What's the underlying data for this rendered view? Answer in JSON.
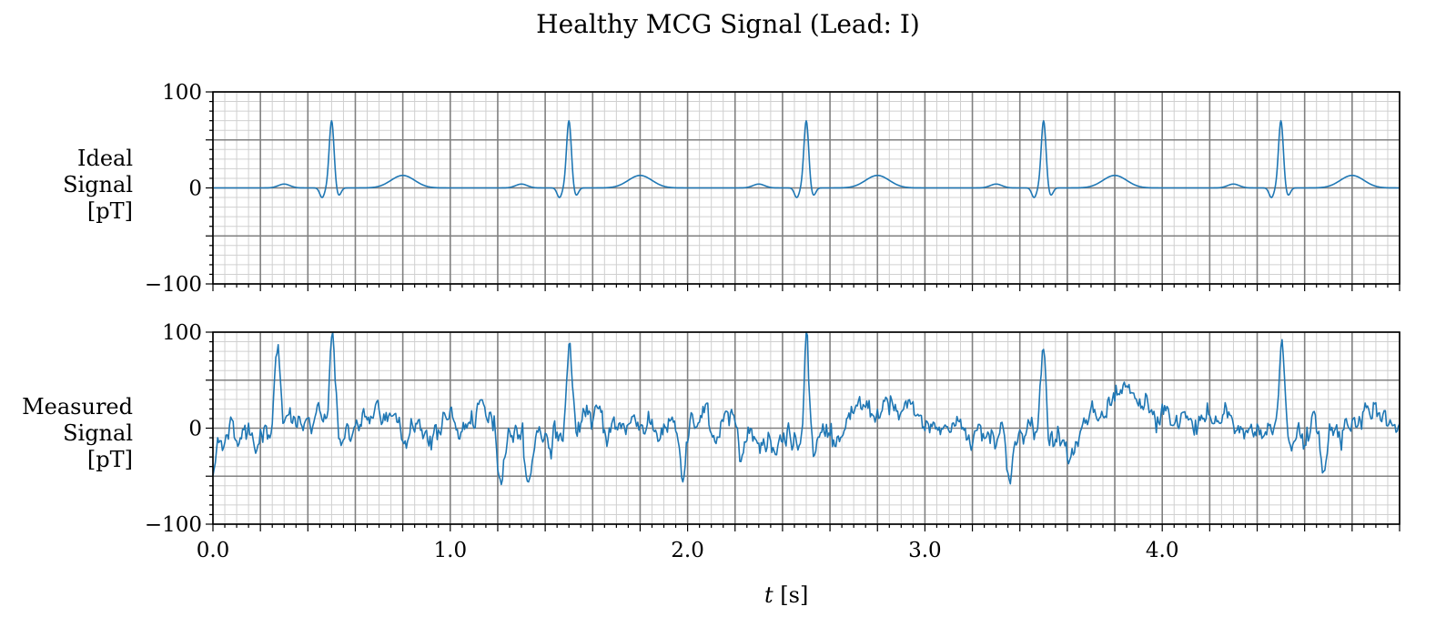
{
  "chart_data": {
    "title": "Healthy MCG Signal (Lead: I)",
    "xlabel_var": "t",
    "xlabel_unit": "[s]",
    "xlim": [
      0.0,
      5.0
    ],
    "x_tick_labels": [
      "0.0",
      "1.0",
      "2.0",
      "3.0",
      "4.0"
    ],
    "x_tick_values": [
      0.0,
      1.0,
      2.0,
      3.0,
      4.0
    ],
    "grid": true,
    "panels": [
      {
        "type": "line",
        "ylabel_lines": [
          "Ideal",
          "Signal",
          "[pT]"
        ],
        "ylim": [
          -100,
          100
        ],
        "y_tick_values": [
          100,
          0,
          -100
        ],
        "y_tick_labels": [
          "100",
          "0",
          "−100"
        ],
        "series": [
          {
            "color": "#1f77b4",
            "kind": "synthetic-beats",
            "beat_period_s": 1.0,
            "beat_starts_s": [
              0.0,
              1.0,
              2.0,
              3.0,
              4.0
            ],
            "components": {
              "p_wave": {
                "t": 0.3,
                "amplitude": 4
              },
              "q_wave": {
                "t": 0.46,
                "amplitude": -10
              },
              "r_wave": {
                "t": 0.5,
                "amplitude": 70
              },
              "s_wave": {
                "t": 0.53,
                "amplitude": -8
              },
              "t_wave": {
                "t": 0.8,
                "amplitude": 13
              }
            }
          }
        ]
      },
      {
        "type": "line",
        "ylabel_lines": [
          "Measured",
          "Signal",
          "[pT]"
        ],
        "ylim": [
          -100,
          100
        ],
        "y_tick_values": [
          100,
          0,
          -100
        ],
        "y_tick_labels": [
          "100",
          "0",
          "−100"
        ],
        "series": [
          {
            "color": "#1f77b4",
            "kind": "noisy-beats",
            "approx_peak_values": [
              {
                "t": 0.27,
                "y": 78
              },
              {
                "t": 0.51,
                "y": 81
              },
              {
                "t": 1.51,
                "y": 64
              },
              {
                "t": 2.5,
                "y": 100
              },
              {
                "t": 3.5,
                "y": 82
              },
              {
                "t": 4.51,
                "y": 75
              }
            ],
            "approx_trough_values": [
              {
                "t": 0.0,
                "y": -50
              },
              {
                "t": 1.21,
                "y": -53
              },
              {
                "t": 1.33,
                "y": -56
              },
              {
                "t": 1.98,
                "y": -56
              },
              {
                "t": 3.36,
                "y": -58
              },
              {
                "t": 4.68,
                "y": -45
              }
            ]
          }
        ]
      }
    ]
  }
}
